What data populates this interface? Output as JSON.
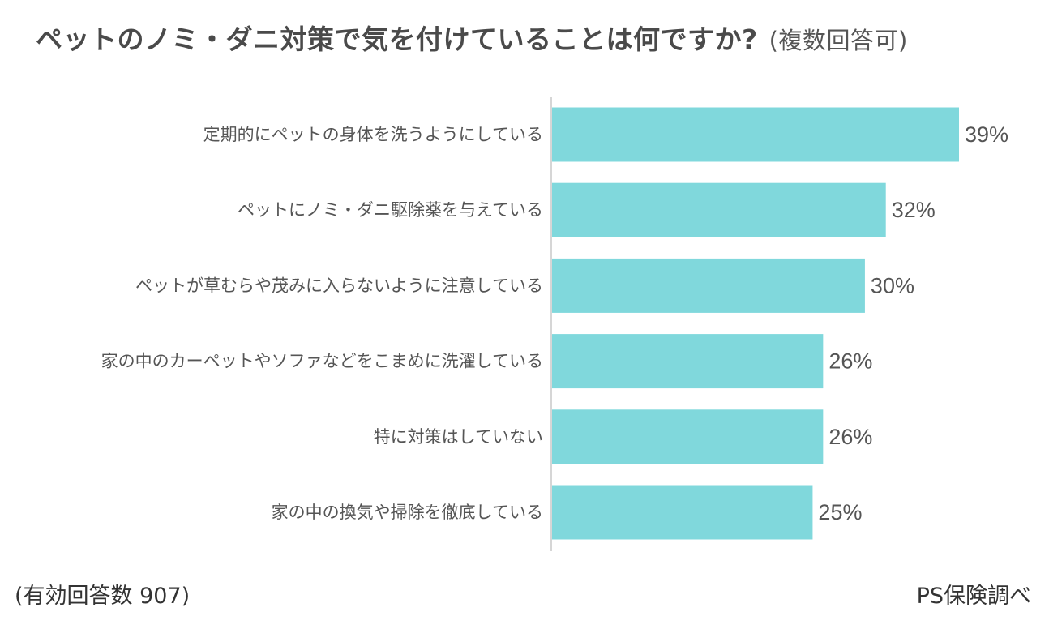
{
  "chart_data": {
    "type": "bar",
    "orientation": "horizontal",
    "title": "ペットのノミ・ダニ対策で気を付けていることは何ですか?",
    "subtitle": "(複数回答可)",
    "categories": [
      "定期的にペットの身体を洗うようにしている",
      "ペットにノミ・ダニ駆除薬を与えている",
      "ペットが草むらや茂みに入らないように注意している",
      "家の中のカーペットやソファなどをこまめに洗濯している",
      "特に対策はしていない",
      "家の中の換気や掃除を徹底している"
    ],
    "values": [
      39,
      32,
      30,
      26,
      26,
      25
    ],
    "value_labels": [
      "39%",
      "32%",
      "30%",
      "26%",
      "26%",
      "25%"
    ],
    "unit": "%",
    "xlim": [
      0,
      47
    ],
    "grid": false,
    "bar_color": "#80d8dc"
  },
  "footer": {
    "sample": "(有効回答数 907)",
    "source": "PS保険調べ"
  }
}
